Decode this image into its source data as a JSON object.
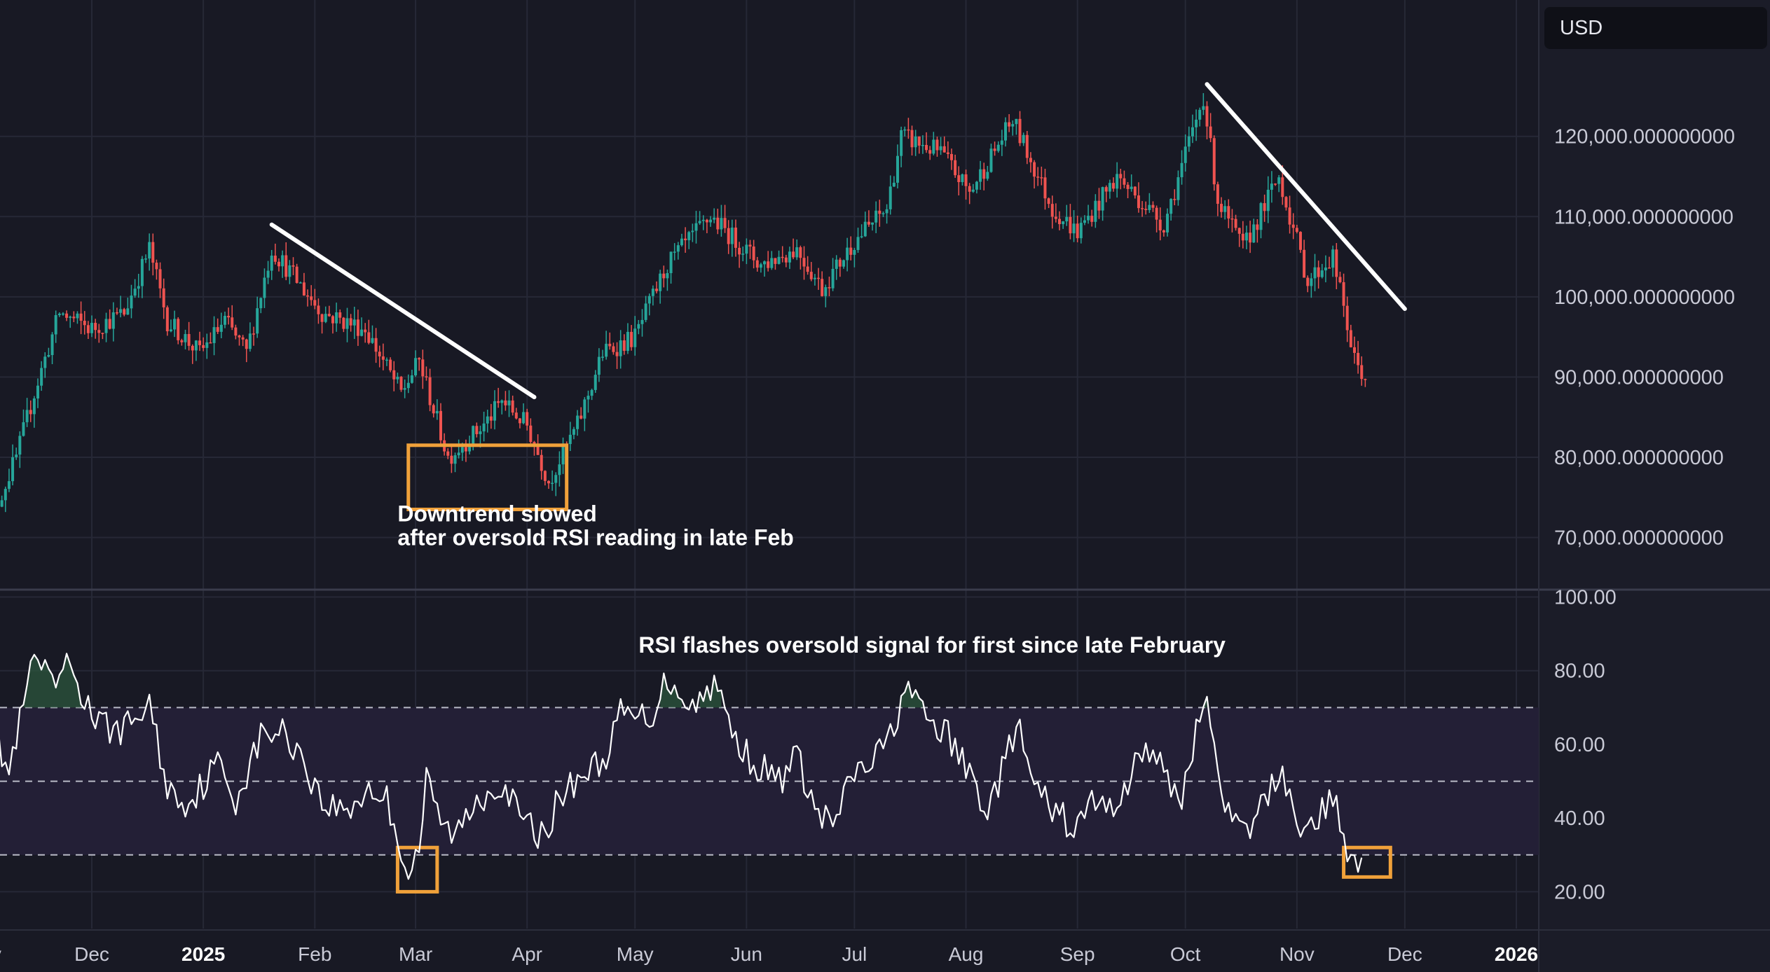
{
  "currency_badge": "USD",
  "chart_data": [
    {
      "type": "candlestick",
      "title": "",
      "y_tick_labels": [
        "120,000.000000000",
        "110,000.000000000",
        "100,000.000000000",
        "90,000.000000000",
        "80,000.000000000",
        "70,000.000000000"
      ],
      "y_ticks": [
        120000,
        110000,
        100000,
        90000,
        80000,
        70000
      ],
      "ylim": [
        63500,
        137000
      ],
      "x_tick_labels": [
        "Nov",
        "Dec",
        "2025",
        "Feb",
        "Mar",
        "Apr",
        "May",
        "Jun",
        "Jul",
        "Aug",
        "Sep",
        "Oct",
        "Nov",
        "Dec",
        "2026"
      ],
      "x_tick_dates": [
        "2024-11-01",
        "2024-12-01",
        "2025-01-01",
        "2025-02-01",
        "2025-03-01",
        "2025-04-01",
        "2025-05-01",
        "2025-06-01",
        "2025-07-01",
        "2025-08-01",
        "2025-09-01",
        "2025-10-01",
        "2025-11-01",
        "2025-12-01",
        "2026-01-01"
      ],
      "bold_x_ticks": [
        "2025",
        "2026"
      ],
      "colors": {
        "up": "#26a69a",
        "down": "#ef5350"
      },
      "series": [
        {
          "name": "",
          "values_at_dates": {
            "2024-11-01": 70000,
            "2024-11-10": 80000,
            "2024-11-15": 88000,
            "2024-11-22": 98000,
            "2024-12-01": 96000,
            "2024-12-10": 98000,
            "2024-12-17": 106000,
            "2024-12-22": 97000,
            "2024-12-31": 93000,
            "2025-01-07": 97000,
            "2025-01-13": 93000,
            "2025-01-20": 106000,
            "2025-01-27": 102000,
            "2025-02-03": 98000,
            "2025-02-15": 96000,
            "2025-02-25": 88000,
            "2025-03-02": 92000,
            "2025-03-10": 80000,
            "2025-03-20": 84000,
            "2025-03-25": 87000,
            "2025-04-01": 84000,
            "2025-04-07": 77000,
            "2025-04-15": 84000,
            "2025-04-22": 93000,
            "2025-05-01": 95000,
            "2025-05-10": 104000,
            "2025-05-22": 110000,
            "2025-06-05": 104000,
            "2025-06-15": 106000,
            "2025-06-22": 101000,
            "2025-07-01": 107000,
            "2025-07-10": 111000,
            "2025-07-14": 120000,
            "2025-07-25": 118000,
            "2025-08-02": 113000,
            "2025-08-14": 122000,
            "2025-08-25": 111000,
            "2025-09-01": 108000,
            "2025-09-12": 115000,
            "2025-09-25": 109000,
            "2025-10-06": 125000,
            "2025-10-10": 112000,
            "2025-10-17": 106000,
            "2025-10-27": 115000,
            "2025-11-04": 102000,
            "2025-11-11": 105000,
            "2025-11-17": 92000,
            "2025-11-20": 90000
          }
        }
      ],
      "trendlines": [
        {
          "from": {
            "date": "2025-01-20",
            "value": 109000
          },
          "to": {
            "date": "2025-04-03",
            "value": 87500
          }
        },
        {
          "from": {
            "date": "2025-10-07",
            "value": 126500
          },
          "to": {
            "date": "2025-12-01",
            "value": 98500
          }
        }
      ],
      "highlight_boxes": [
        {
          "from": {
            "date": "2025-02-27",
            "value": 81500
          },
          "to": {
            "date": "2025-04-12",
            "value": 73500
          }
        }
      ],
      "annotations": [
        {
          "text_lines": [
            "Downtrend slowed",
            "after oversold RSI reading in late Feb"
          ],
          "date": "2025-02-24",
          "value": 72000
        }
      ]
    },
    {
      "type": "line",
      "title": "RSI flashes oversold signal for first since late February",
      "y_tick_labels": [
        "100.00",
        "80.00",
        "60.00",
        "40.00",
        "20.00"
      ],
      "y_ticks": [
        100,
        80,
        60,
        40,
        20
      ],
      "ylim": [
        10,
        102
      ],
      "reference_lines": [
        70,
        50,
        30
      ],
      "shaded_band": [
        30,
        70
      ],
      "series": [
        {
          "name": "",
          "color": "#ffffff",
          "values_at_dates": {
            "2024-11-01": 70,
            "2024-11-05": 60,
            "2024-11-08": 52,
            "2024-11-12": 70,
            "2024-11-15": 84,
            "2024-11-20": 75,
            "2024-11-25": 82,
            "2024-11-29": 72,
            "2024-12-03": 65,
            "2024-12-10": 64,
            "2024-12-17": 71,
            "2024-12-22": 48,
            "2024-12-28": 44,
            "2025-01-05": 55,
            "2025-01-10": 45,
            "2025-01-17": 62,
            "2025-01-22": 64,
            "2025-01-28": 58,
            "2025-02-03": 44,
            "2025-02-10": 42,
            "2025-02-16": 48,
            "2025-02-21": 45,
            "2025-02-27": 25,
            "2025-03-02": 32,
            "2025-03-04": 50,
            "2025-03-08": 39,
            "2025-03-12": 35,
            "2025-03-18": 45,
            "2025-03-25": 50,
            "2025-03-30": 40,
            "2025-04-05": 35,
            "2025-04-10": 45,
            "2025-04-16": 52,
            "2025-04-22": 55,
            "2025-04-27": 68,
            "2025-05-05": 67,
            "2025-05-10": 78,
            "2025-05-18": 70,
            "2025-05-23": 78,
            "2025-05-28": 63,
            "2025-06-03": 55,
            "2025-06-10": 50,
            "2025-06-15": 57,
            "2025-06-20": 42,
            "2025-06-25": 38,
            "2025-07-01": 52,
            "2025-07-06": 55,
            "2025-07-11": 62,
            "2025-07-15": 76,
            "2025-07-20": 68,
            "2025-07-27": 62,
            "2025-08-02": 52,
            "2025-08-07": 42,
            "2025-08-12": 55,
            "2025-08-15": 66,
            "2025-08-20": 48,
            "2025-08-25": 42,
            "2025-09-01": 37,
            "2025-09-05": 45,
            "2025-09-10": 42,
            "2025-09-15": 50,
            "2025-09-20": 60,
            "2025-09-25": 52,
            "2025-09-30": 45,
            "2025-10-03": 60,
            "2025-10-06": 72,
            "2025-10-09": 62,
            "2025-10-13": 40,
            "2025-10-18": 35,
            "2025-10-23": 45,
            "2025-10-28": 53,
            "2025-11-03": 35,
            "2025-11-08": 42,
            "2025-11-11": 45,
            "2025-11-15": 32,
            "2025-11-19": 27
          }
        }
      ],
      "highlight_boxes": [
        {
          "from": {
            "date": "2025-02-24",
            "value": 32
          },
          "to": {
            "date": "2025-03-07",
            "value": 20
          }
        },
        {
          "from": {
            "date": "2025-11-14",
            "value": 32
          },
          "to": {
            "date": "2025-11-27",
            "value": 24
          }
        }
      ]
    }
  ]
}
